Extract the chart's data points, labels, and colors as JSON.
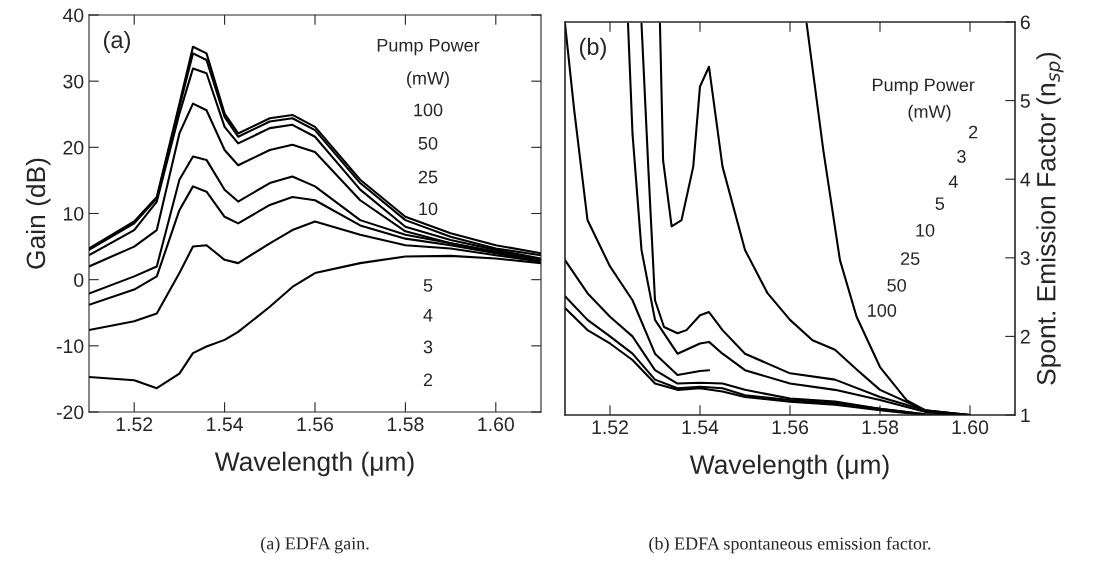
{
  "chart_data": [
    {
      "type": "line",
      "title": "(a)",
      "xlabel": "Wavelength (μm)",
      "ylabel": "Gain (dB)",
      "xlim": [
        1.51,
        1.61
      ],
      "ylim": [
        -20,
        40
      ],
      "xticks": [
        {
          "value": 1.52,
          "label": "1.52"
        },
        {
          "value": 1.54,
          "label": "1.54"
        },
        {
          "value": 1.56,
          "label": "1.56"
        },
        {
          "value": 1.58,
          "label": "1.58"
        },
        {
          "value": 1.6,
          "label": "1.60"
        }
      ],
      "yticks": [
        -20,
        -10,
        0,
        10,
        20,
        30,
        40
      ],
      "x": [
        1.51,
        1.52,
        1.525,
        1.53,
        1.533,
        1.536,
        1.54,
        1.543,
        1.55,
        1.555,
        1.56,
        1.57,
        1.58,
        1.59,
        1.6,
        1.61
      ],
      "series": [
        {
          "color": "#000000",
          "values": [
            4.7,
            8.8,
            12.5,
            26.6,
            35.2,
            34.2,
            25.1,
            22.1,
            24.4,
            24.9,
            23.1,
            15.1,
            9.5,
            7.0,
            5.2,
            4.0
          ]
        },
        {
          "color": "#000000",
          "values": [
            4.5,
            8.5,
            12.3,
            26.1,
            34.2,
            33.2,
            24.6,
            21.6,
            23.9,
            24.4,
            22.6,
            14.6,
            9.0,
            6.5,
            4.7,
            3.7
          ]
        },
        {
          "color": "#000000",
          "values": [
            3.7,
            7.5,
            11.8,
            25.1,
            31.9,
            31.2,
            23.1,
            20.6,
            22.9,
            23.4,
            21.6,
            13.6,
            8.0,
            6.0,
            4.5,
            3.2
          ]
        },
        {
          "color": "#000000",
          "values": [
            2.0,
            5.0,
            7.5,
            22.1,
            26.6,
            25.6,
            19.6,
            17.3,
            19.6,
            20.4,
            19.3,
            12.0,
            7.3,
            5.5,
            4.2,
            3.0
          ]
        },
        {
          "color": "#000000",
          "values": [
            -2.1,
            0.5,
            2.0,
            15.1,
            18.6,
            18.1,
            13.6,
            11.8,
            14.6,
            15.6,
            14.1,
            9.0,
            6.8,
            5.5,
            4.2,
            3.0
          ]
        },
        {
          "color": "#000000",
          "values": [
            -3.8,
            -1.5,
            0.5,
            10.5,
            14.1,
            13.3,
            9.5,
            8.5,
            11.3,
            12.5,
            12.0,
            8.2,
            6.2,
            5.2,
            4.0,
            2.7
          ]
        },
        {
          "color": "#000000",
          "values": [
            -7.6,
            -6.3,
            -5.1,
            1.0,
            5.0,
            5.2,
            3.0,
            2.5,
            5.5,
            7.5,
            8.8,
            6.8,
            5.2,
            4.7,
            3.7,
            2.7
          ]
        },
        {
          "color": "#000000",
          "values": [
            -14.7,
            -15.2,
            -16.4,
            -14.2,
            -11.1,
            -10.1,
            -9.1,
            -7.9,
            -4.1,
            -1.1,
            1.0,
            2.5,
            3.5,
            3.6,
            3.2,
            2.5
          ]
        }
      ],
      "annotations": [
        "Pump Power",
        "(mW)",
        "100",
        "50",
        "25",
        "10",
        "5",
        "4",
        "3",
        "2",
        "(a) EDFA gain."
      ]
    },
    {
      "type": "line",
      "title": "(b)",
      "xlabel": "Wavelength (μm)",
      "y2label": "Spont. Emission Factor (n$_{sp}$)",
      "xlim": [
        1.51,
        1.61
      ],
      "y2lim": [
        1,
        6
      ],
      "xticks": [
        {
          "value": 1.52,
          "label": "1.52"
        },
        {
          "value": 1.54,
          "label": "1.54"
        },
        {
          "value": 1.56,
          "label": "1.56"
        },
        {
          "value": 1.58,
          "label": "1.58"
        },
        {
          "value": 1.6,
          "label": "1.60"
        }
      ],
      "y2ticks": [
        1,
        2,
        3,
        4,
        5,
        6
      ],
      "series": [
        {
          "axis": "y2",
          "color": "#000000",
          "x": [
            1.51,
            1.515,
            1.52,
            1.525,
            1.53,
            1.535,
            1.54,
            1.545,
            1.55,
            1.56,
            1.57,
            1.58,
            1.59,
            1.6
          ],
          "values": [
            2.36,
            2.08,
            1.91,
            1.7,
            1.4,
            1.32,
            1.34,
            1.3,
            1.23,
            1.17,
            1.13,
            1.06,
            1.0,
            1.0
          ]
        },
        {
          "axis": "y2",
          "color": "#000000",
          "x": [
            1.51,
            1.515,
            1.52,
            1.525,
            1.53,
            1.535,
            1.54,
            1.545,
            1.55,
            1.56,
            1.57,
            1.58,
            1.59,
            1.6
          ],
          "values": [
            2.51,
            2.21,
            2.0,
            1.78,
            1.45,
            1.34,
            1.36,
            1.34,
            1.25,
            1.19,
            1.15,
            1.08,
            1.01,
            1.0
          ]
        },
        {
          "axis": "y2",
          "color": "#000000",
          "x": [
            1.51,
            1.515,
            1.52,
            1.525,
            1.53,
            1.535,
            1.54,
            1.545,
            1.55,
            1.56,
            1.57,
            1.58,
            1.59,
            1.6
          ],
          "values": [
            2.97,
            2.55,
            2.25,
            2.0,
            1.57,
            1.4,
            1.41,
            1.4,
            1.32,
            1.21,
            1.17,
            1.08,
            1.01,
            1.0
          ]
        },
        {
          "axis": "y2",
          "color": "#000000",
          "x": [
            1.51,
            1.512,
            1.515,
            1.52,
            1.525,
            1.53,
            1.535,
            1.54,
            1.542
          ],
          "values": [
            5.98,
            4.9,
            3.48,
            2.89,
            2.46,
            1.78,
            1.51,
            1.56,
            1.57
          ]
        },
        {
          "axis": "y2",
          "color": "#000000",
          "x": [
            1.524,
            1.525,
            1.527,
            1.53,
            1.535,
            1.54,
            1.542,
            1.545,
            1.55,
            1.56,
            1.57,
            1.58,
            1.59,
            1.6
          ],
          "values": [
            5.98,
            4.58,
            3.1,
            2.21,
            1.78,
            1.91,
            1.93,
            1.78,
            1.57,
            1.4,
            1.32,
            1.19,
            1.04,
            1.0
          ]
        },
        {
          "axis": "y2",
          "color": "#000000",
          "x": [
            1.527,
            1.5285,
            1.53,
            1.532,
            1.535,
            1.537,
            1.54,
            1.542,
            1.545,
            1.55,
            1.56,
            1.57,
            1.58,
            1.59,
            1.6
          ],
          "values": [
            5.98,
            4.16,
            2.46,
            2.12,
            2.04,
            2.08,
            2.27,
            2.31,
            2.08,
            1.78,
            1.53,
            1.45,
            1.23,
            1.06,
            1.0
          ]
        },
        {
          "axis": "y2",
          "color": "#000000",
          "x": [
            1.5311,
            1.5318,
            1.5337,
            1.5359,
            1.5385,
            1.54,
            1.542,
            1.545,
            1.55,
            1.555,
            1.56,
            1.565,
            1.57,
            1.575,
            1.58,
            1.59,
            1.6
          ],
          "values": [
            5.98,
            4.24,
            3.4,
            3.48,
            4.16,
            5.18,
            5.43,
            4.16,
            3.1,
            2.55,
            2.21,
            1.95,
            1.83,
            1.57,
            1.32,
            1.06,
            1.0
          ]
        },
        {
          "axis": "y2",
          "color": "#000000",
          "x": [
            1.5637,
            1.5674,
            1.5711,
            1.5748,
            1.58,
            1.5859,
            1.59,
            1.5948,
            1.6
          ],
          "values": [
            5.98,
            4.37,
            2.97,
            2.25,
            1.61,
            1.19,
            1.06,
            1.01,
            1.0
          ]
        }
      ],
      "annotations": [
        "Pump Power",
        "(mW)",
        "2",
        "3",
        "4",
        "5",
        "10",
        "25",
        "50",
        "100",
        "(b) EDFA spontaneous emission factor."
      ]
    }
  ]
}
